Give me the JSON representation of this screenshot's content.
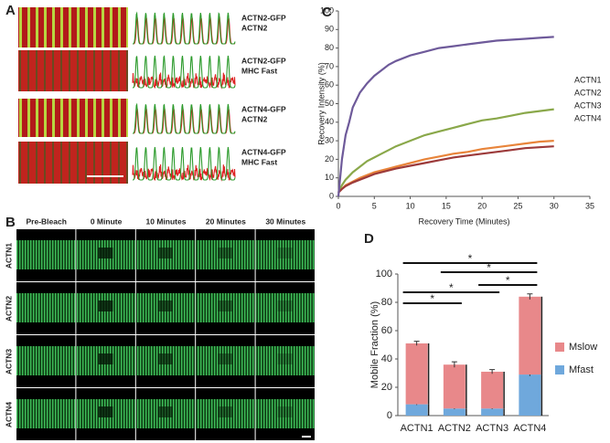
{
  "panel_labels": [
    "A",
    "B",
    "C",
    "D"
  ],
  "panel_a": {
    "labels": [
      {
        "top": "ACTN2-GFP",
        "bottom": "ACTN2"
      },
      {
        "top": "ACTN2-GFP",
        "bottom": "MHC Fast"
      },
      {
        "top": "ACTN4-GFP",
        "bottom": "ACTN2"
      },
      {
        "top": "ACTN4-GFP",
        "bottom": "MHC Fast"
      }
    ]
  },
  "panel_b": {
    "columns": [
      "Pre-Bleach",
      "0 Minute",
      "10 Minutes",
      "20 Minutes",
      "30 Minutes"
    ],
    "rows": [
      "ACTN1",
      "ACTN2",
      "ACTN3",
      "ACTN4"
    ]
  },
  "chart_data": [
    {
      "type": "line",
      "x_label": "Recovery Time (Minutes)",
      "y_label": "Recovery Intensity (%)",
      "x": [
        0,
        0.5,
        1,
        1.5,
        2,
        3,
        4,
        5,
        6,
        7,
        8,
        10,
        12,
        14,
        16,
        18,
        20,
        22,
        24,
        26,
        28,
        30
      ],
      "series": [
        {
          "name": "ACTN1",
          "color": "#8aa84a",
          "values": [
            2,
            6,
            9,
            11,
            13,
            16,
            19,
            21,
            23,
            25,
            27,
            30,
            33,
            35,
            37,
            39,
            41,
            42,
            43.5,
            45,
            46,
            47
          ]
        },
        {
          "name": "ACTN2",
          "color": "#e8843a",
          "values": [
            2,
            4,
            6,
            7,
            8,
            10,
            11.5,
            13,
            14,
            15,
            16,
            18,
            20,
            21.5,
            23,
            24,
            25.5,
            26.5,
            27.5,
            28.5,
            29.5,
            30
          ]
        },
        {
          "name": "ACTN3",
          "color": "#9c3a3a",
          "values": [
            2,
            4,
            5.5,
            6.5,
            7.5,
            9,
            10.5,
            12,
            13,
            14,
            15,
            16.5,
            18,
            19.5,
            21,
            22,
            23,
            24,
            25,
            26,
            26.5,
            27
          ]
        },
        {
          "name": "ACTN4",
          "color": "#6e5a9a",
          "values": [
            0,
            20,
            33,
            40,
            48,
            56,
            61,
            65,
            68,
            71,
            73,
            76,
            78,
            80,
            81,
            82,
            83,
            84,
            84.5,
            85,
            85.5,
            86
          ]
        }
      ],
      "xlim": [
        0,
        35
      ],
      "xticks": [
        0,
        5,
        10,
        15,
        20,
        25,
        30,
        35
      ],
      "ylim": [
        0,
        100
      ],
      "yticks": [
        0,
        10,
        20,
        30,
        40,
        50,
        60,
        70,
        80,
        90,
        100
      ]
    },
    {
      "type": "stacked_bar",
      "y_label": "Mobile Fraction (%)",
      "categories": [
        "ACTN1",
        "ACTN2",
        "ACTN3",
        "ACTN4"
      ],
      "series": [
        {
          "name": "Mfast",
          "color": "#6fa8dc",
          "values": [
            8,
            5,
            5,
            29
          ],
          "errors": [
            0.5,
            0.5,
            0.5,
            1
          ]
        },
        {
          "name": "Mslow",
          "color": "#e8888a",
          "values": [
            43,
            31,
            26,
            55
          ],
          "errors": [
            1.5,
            2,
            1.5,
            2
          ]
        }
      ],
      "ylim": [
        0,
        100
      ],
      "yticks": [
        0,
        20,
        40,
        60,
        80,
        100
      ],
      "significance": [
        {
          "from": "ACTN1",
          "to": "ACTN4",
          "label": "*"
        },
        {
          "from": "ACTN2",
          "to": "ACTN4",
          "label": "*"
        },
        {
          "from": "ACTN3",
          "to": "ACTN4",
          "label": "*"
        },
        {
          "from": "ACTN1",
          "to": "ACTN3",
          "label": "*"
        },
        {
          "from": "ACTN1",
          "to": "ACTN2",
          "label": "*"
        }
      ]
    }
  ]
}
